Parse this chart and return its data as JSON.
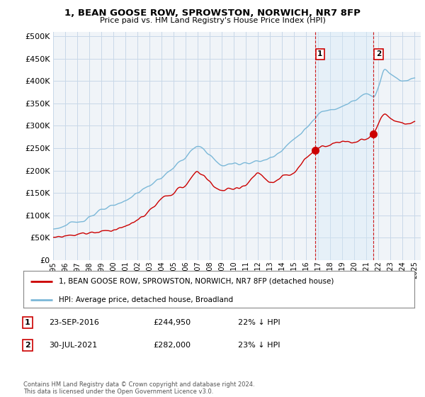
{
  "title": "1, BEAN GOOSE ROW, SPROWSTON, NORWICH, NR7 8FP",
  "subtitle": "Price paid vs. HM Land Registry's House Price Index (HPI)",
  "ytick_values": [
    0,
    50000,
    100000,
    150000,
    200000,
    250000,
    300000,
    350000,
    400000,
    450000,
    500000
  ],
  "ylim": [
    0,
    510000
  ],
  "xlim_start": 1995.0,
  "xlim_end": 2025.5,
  "sale1_x": 2016.73,
  "sale1_y": 244950,
  "sale2_x": 2021.58,
  "sale2_y": 282000,
  "sale1_label": "23-SEP-2016",
  "sale1_price": "£244,950",
  "sale1_pct": "22% ↓ HPI",
  "sale2_label": "30-JUL-2021",
  "sale2_price": "£282,000",
  "sale2_pct": "23% ↓ HPI",
  "legend_line1": "1, BEAN GOOSE ROW, SPROWSTON, NORWICH, NR7 8FP (detached house)",
  "legend_line2": "HPI: Average price, detached house, Broadland",
  "footer": "Contains HM Land Registry data © Crown copyright and database right 2024.\nThis data is licensed under the Open Government Licence v3.0.",
  "hpi_color": "#7bb8d8",
  "price_color": "#cc0000",
  "dashed_color": "#cc0000",
  "shade_color": "#d6eaf8",
  "background_color": "#ffffff",
  "chart_bg_color": "#f0f4f8",
  "grid_color": "#c8d8e8",
  "xtick_years": [
    1995,
    1996,
    1997,
    1998,
    1999,
    2000,
    2001,
    2002,
    2003,
    2004,
    2005,
    2006,
    2007,
    2008,
    2009,
    2010,
    2011,
    2012,
    2013,
    2014,
    2015,
    2016,
    2017,
    2018,
    2019,
    2020,
    2021,
    2022,
    2023,
    2024,
    2025
  ]
}
